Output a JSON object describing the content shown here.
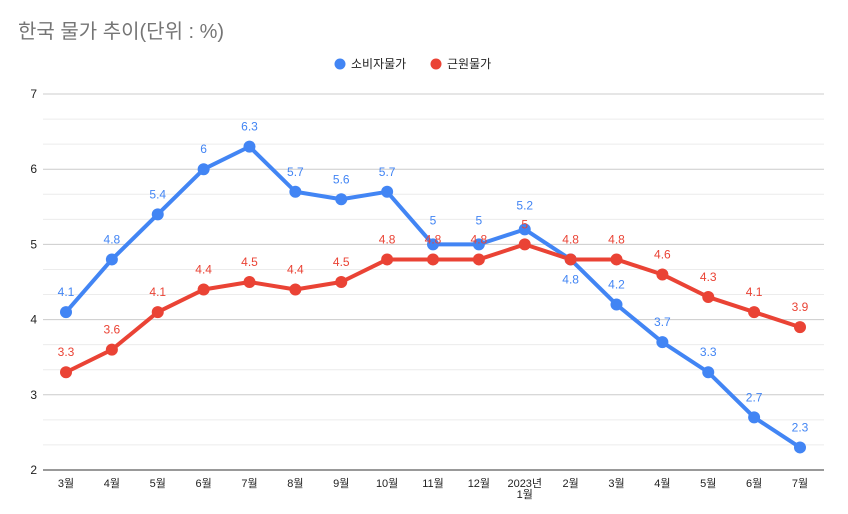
{
  "chart_data": {
    "type": "line",
    "title": "한국 물가 추이(단위 : %)",
    "xlabel": "",
    "ylabel": "",
    "categories": [
      "3월",
      "4월",
      "5월",
      "6월",
      "7월",
      "8월",
      "9월",
      "10월",
      "11월",
      "12월",
      "2023년 1월",
      "2월",
      "3월",
      "4월",
      "5월",
      "6월",
      "7월"
    ],
    "ylim": [
      2,
      7
    ],
    "yticks": [
      2,
      3,
      4,
      5,
      6,
      7
    ],
    "grid": true,
    "legend_position": "top",
    "series": [
      {
        "name": "소비자물가",
        "color": "#4285f4",
        "values": [
          4.1,
          4.8,
          5.4,
          6,
          6.3,
          5.7,
          5.6,
          5.7,
          5,
          5,
          5.2,
          4.8,
          4.2,
          3.7,
          3.3,
          2.7,
          2.3
        ]
      },
      {
        "name": "근원물가",
        "color": "#ea4335",
        "values": [
          3.3,
          3.6,
          4.1,
          4.4,
          4.5,
          4.4,
          4.5,
          4.8,
          4.8,
          4.8,
          5,
          4.8,
          4.8,
          4.6,
          4.3,
          4.1,
          3.9
        ]
      }
    ]
  }
}
